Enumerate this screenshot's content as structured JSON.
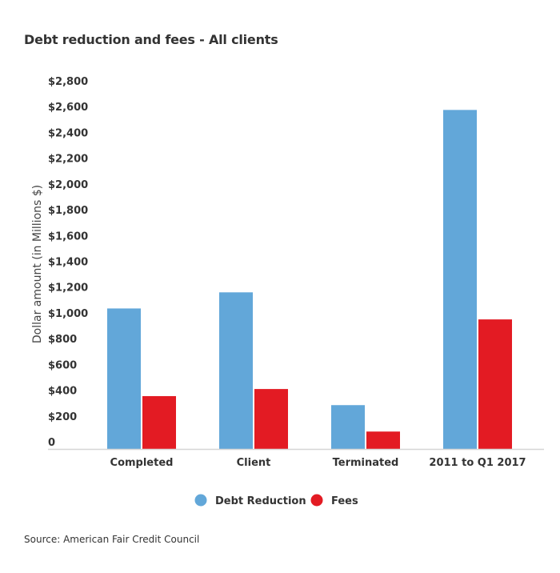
{
  "chart_data": {
    "type": "bar",
    "title": "Debt reduction and fees - All clients",
    "xlabel": "",
    "ylabel": "Dollar amount (in Millions $)",
    "categories": [
      "Completed",
      "Client",
      "Terminated",
      "2011 to Q1 2017"
    ],
    "series": [
      {
        "name": "Debt Reduction",
        "color": "#62a7d9",
        "values": [
          1090,
          1215,
          340,
          2630
        ]
      },
      {
        "name": "Fees",
        "color": "#e31b23",
        "values": [
          410,
          465,
          135,
          1005
        ]
      }
    ],
    "ylim": [
      0,
      2800
    ],
    "yticks": [
      0,
      200,
      400,
      600,
      800,
      1000,
      1200,
      1400,
      1600,
      1800,
      2000,
      2200,
      2400,
      2600,
      2800
    ],
    "ytick_labels": [
      "0",
      "$200",
      "$400",
      "$600",
      "$800",
      "$1,000",
      "$1,200",
      "$1,400",
      "$1,600",
      "$1,800",
      "$2,000",
      "$2,200",
      "$2,400",
      "$2,600",
      "$2,800"
    ],
    "grid": false,
    "legend_placement": "bottom"
  },
  "source": "Source: American Fair Credit Council"
}
